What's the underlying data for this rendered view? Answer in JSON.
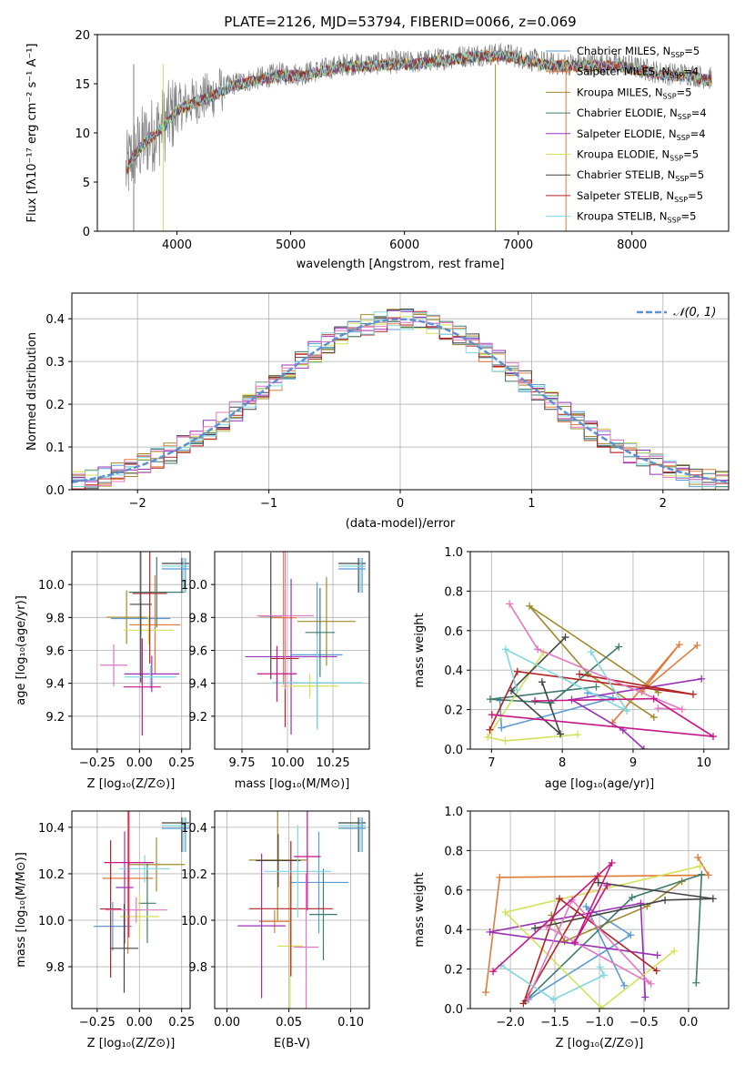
{
  "colors": [
    "#1f77b4",
    "#ff7f0e",
    "#8c564b",
    "#2ca02c",
    "#9467bd",
    "#bcbd22",
    "#000000",
    "#d62728",
    "#17becf",
    "#7f7f7f",
    "#e377c2",
    "#98df8a",
    "#17a2b8",
    "#c7c7c7",
    "#dbdb8d",
    "#a9dce3",
    "#e8e85a",
    "#c42525",
    "#8a2be2"
  ],
  "chart_data": [
    {
      "id": "spectrum",
      "type": "line",
      "title": "PLATE=2126, MJD=53794, FIBERID=0066, z=0.069",
      "xlabel": "wavelength [Angstrom, rest frame]",
      "ylabel": "Flux [fλ10⁻¹⁷ erg cm⁻² s⁻¹ A⁻¹]",
      "xlim": [
        3300,
        8850
      ],
      "ylim": [
        0,
        20
      ],
      "xticks": [
        4000,
        5000,
        6000,
        7000,
        8000
      ],
      "yticks": [
        0,
        5,
        10,
        15,
        20
      ],
      "grid": false,
      "legend_position": "top-right",
      "legend": [
        {
          "label": "Chabrier MILES, N",
          "sub": "SSP",
          "eq": "=5",
          "color": "#5b9bd5"
        },
        {
          "label": "Salpeter MILES, N",
          "sub": "SSP",
          "eq": "=4",
          "color": "#e07b39"
        },
        {
          "label": "Kroupa MILES, N",
          "sub": "SSP",
          "eq": "=5",
          "color": "#a08a2b"
        },
        {
          "label": "Chabrier ELODIE, N",
          "sub": "SSP",
          "eq": "=4",
          "color": "#3d7a6f"
        },
        {
          "label": "Salpeter ELODIE, N",
          "sub": "SSP",
          "eq": "=4",
          "color": "#9b30b8"
        },
        {
          "label": "Kroupa ELODIE, N",
          "sub": "SSP",
          "eq": "=5",
          "color": "#d4e157"
        },
        {
          "label": "Chabrier STELIB, N",
          "sub": "SSP",
          "eq": "=5",
          "color": "#444444"
        },
        {
          "label": "Salpeter STELIB, N",
          "sub": "SSP",
          "eq": "=5",
          "color": "#b22222"
        },
        {
          "label": "Kroupa STELIB, N",
          "sub": "SSP",
          "eq": "=5",
          "color": "#7fd8e0"
        }
      ],
      "series_profile": {
        "wavelength": [
          3550,
          3600,
          3700,
          3800,
          3900,
          4000,
          4100,
          4200,
          4300,
          4400,
          4500,
          4700,
          4900,
          5100,
          5300,
          5500,
          5700,
          5900,
          6100,
          6300,
          6500,
          6700,
          6900,
          7100,
          7300,
          7500,
          7700,
          7900,
          8100,
          8300,
          8500,
          8700
        ],
        "flux": [
          6,
          7.5,
          9,
          10,
          11,
          12.5,
          13,
          13.5,
          13.8,
          14.5,
          15,
          15.5,
          16,
          16,
          16.5,
          17,
          17,
          17.2,
          17.2,
          17.5,
          17.8,
          18,
          18,
          17.5,
          17,
          17,
          17,
          17,
          16.5,
          16,
          16,
          15.5
        ]
      }
    },
    {
      "id": "residuals",
      "type": "step-histogram",
      "xlabel": "(data-model)/error",
      "ylabel": "Normed distribution",
      "xlim": [
        -2.5,
        2.5
      ],
      "ylim": [
        0,
        0.46
      ],
      "xticks": [
        -2,
        -1,
        0,
        1,
        2
      ],
      "yticks": [
        0.0,
        0.1,
        0.2,
        0.3,
        0.4
      ],
      "grid": true,
      "legend_position": "top-right",
      "reference_curve": {
        "label": "𝒩(0, 1)",
        "mean": 0,
        "sigma": 1,
        "color": "#5b8fd6"
      }
    },
    {
      "id": "age-vs-Z",
      "type": "errorbar",
      "xlabel": "Z [log₁₀(Z/Z⊙)]",
      "ylabel": "age  [log₁₀(age/yr)]",
      "xlim": [
        -0.4,
        0.3
      ],
      "ylim": [
        9.0,
        10.2
      ],
      "xticks": [
        -0.25,
        0.0,
        0.25
      ],
      "xtick_labels": [
        "−0.25",
        "0.00",
        "0.25"
      ],
      "yticks": [
        9.2,
        9.4,
        9.6,
        9.8,
        10.0
      ],
      "grid": true
    },
    {
      "id": "age-vs-mass",
      "type": "errorbar",
      "xlabel": "mass [log₁₀(M/M⊙)]",
      "ylabel": "",
      "xlim": [
        9.6,
        10.45
      ],
      "ylim": [
        9.0,
        10.2
      ],
      "xticks": [
        9.75,
        10.0,
        10.25
      ],
      "xtick_labels": [
        "9.75",
        "10.00",
        "10.25"
      ],
      "yticks": [
        9.2,
        9.4,
        9.6,
        9.8,
        10.0
      ],
      "grid": true
    },
    {
      "id": "weight-vs-age",
      "type": "line",
      "xlabel": "age  [log₁₀(age/yr)]",
      "ylabel": "mass weight",
      "xlim": [
        6.7,
        10.35
      ],
      "ylim": [
        0,
        1.0
      ],
      "xticks": [
        7,
        8,
        9,
        10
      ],
      "yticks": [
        0.0,
        0.2,
        0.4,
        0.6,
        0.8,
        1.0
      ],
      "grid": true
    },
    {
      "id": "mass-vs-Z",
      "type": "errorbar",
      "xlabel": "Z [log₁₀(Z/Z⊙)]",
      "ylabel": "mass [log₁₀(M/M⊙)]",
      "xlim": [
        -0.4,
        0.3
      ],
      "ylim": [
        9.62,
        10.47
      ],
      "xticks": [
        -0.25,
        0.0,
        0.25
      ],
      "xtick_labels": [
        "−0.25",
        "0.00",
        "0.25"
      ],
      "yticks": [
        9.8,
        10.0,
        10.2,
        10.4
      ],
      "grid": true
    },
    {
      "id": "mass-vs-ebv",
      "type": "errorbar",
      "xlabel": "E(B-V)",
      "ylabel": "",
      "xlim": [
        -0.01,
        0.115
      ],
      "ylim": [
        9.62,
        10.47
      ],
      "xticks": [
        0.0,
        0.05,
        0.1
      ],
      "xtick_labels": [
        "0.00",
        "0.05",
        "0.10"
      ],
      "yticks": [
        9.8,
        10.0,
        10.2,
        10.4
      ],
      "grid": true
    },
    {
      "id": "weight-vs-Z",
      "type": "line",
      "xlabel": "Z [log₁₀(Z/Z⊙)]",
      "ylabel": "mass weight",
      "xlim": [
        -2.45,
        0.45
      ],
      "ylim": [
        0,
        1.0
      ],
      "xticks": [
        -2.0,
        -1.5,
        -1.0,
        -0.5,
        0.0
      ],
      "xtick_labels": [
        "−2.0",
        "−1.5",
        "−1.0",
        "−0.5",
        "0.0"
      ],
      "yticks": [
        0.0,
        0.2,
        0.4,
        0.6,
        0.8,
        1.0
      ],
      "grid": true
    }
  ]
}
